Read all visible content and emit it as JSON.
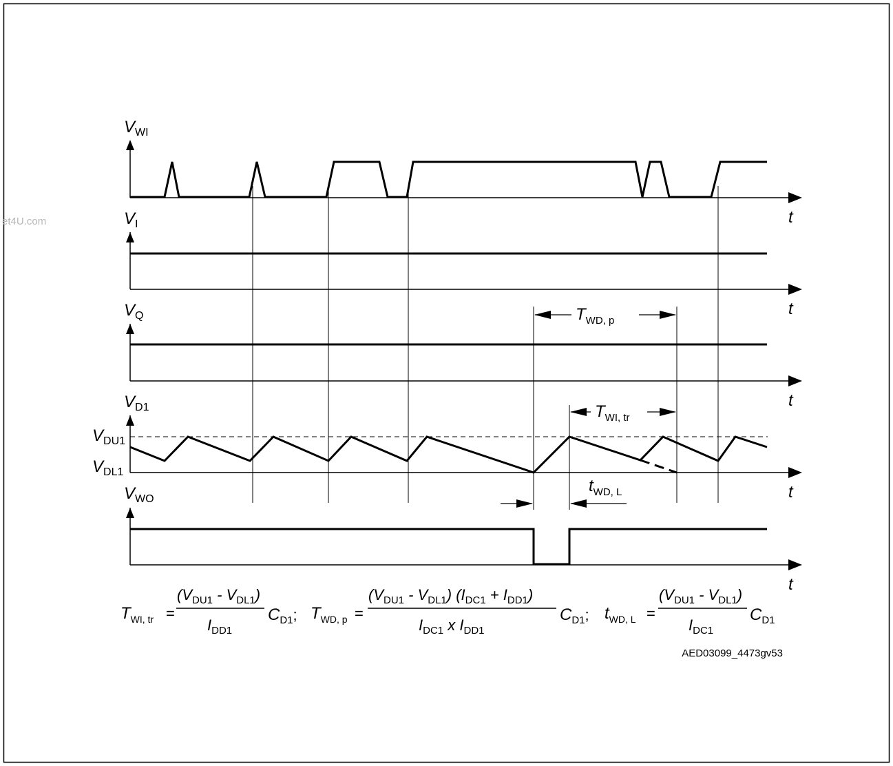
{
  "watermark": "et4U.com",
  "time_label": "t",
  "signals": [
    {
      "id": "wi",
      "label": "V",
      "sub": "WI"
    },
    {
      "id": "i",
      "label": "V",
      "sub": "I"
    },
    {
      "id": "q",
      "label": "V",
      "sub": "Q"
    },
    {
      "id": "d1",
      "label": "V",
      "sub": "D1"
    },
    {
      "id": "wo",
      "label": "V",
      "sub": "WO"
    }
  ],
  "levels": {
    "upper": {
      "label": "V",
      "sub": "DU1"
    },
    "lower": {
      "label": "V",
      "sub": "DL1"
    }
  },
  "intervals": {
    "twd_p": {
      "label": "T",
      "sub": "WD, p"
    },
    "twi_tr": {
      "label": "T",
      "sub": "WI, tr"
    },
    "twd_l": {
      "label": "t",
      "sub": "WD, L"
    }
  },
  "formulas": {
    "f1": {
      "lhs_main": "T",
      "lhs_sub": "WI, tr",
      "num": [
        "(V",
        "DU1",
        " - V",
        "DL1",
        ")"
      ],
      "den": [
        "I",
        "DD1"
      ],
      "tail": [
        "C",
        "D1",
        ";"
      ]
    },
    "f2": {
      "lhs_main": "T",
      "lhs_sub": "WD, p",
      "num": [
        "(V",
        "DU1",
        " - V",
        "DL1",
        ") (I",
        "DC1",
        " + I",
        "DD1",
        ")"
      ],
      "den": [
        "I",
        "DC1",
        " x I",
        "DD1"
      ],
      "tail": [
        "C",
        "D1",
        ";"
      ]
    },
    "f3": {
      "lhs_main": "t",
      "lhs_sub": "WD, L",
      "num": [
        "(V",
        "DU1",
        " - V",
        "DL1",
        ")"
      ],
      "den": [
        "I",
        "DC1"
      ],
      "tail": [
        "C",
        "D1"
      ]
    }
  },
  "equals": "=",
  "figure_id": "AED03099_4473gv53"
}
